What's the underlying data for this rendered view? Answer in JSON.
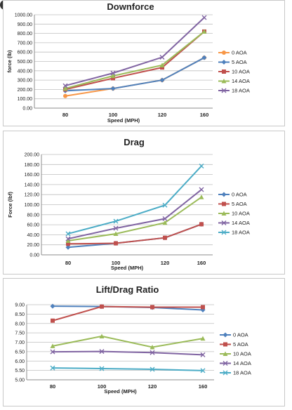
{
  "chart_data": [
    {
      "type": "line",
      "title": "Downforce",
      "xlabel": "Speed (MPH)",
      "ylabel": "force (lb)",
      "categories": [
        "80",
        "100",
        "120",
        "160"
      ],
      "ylim": [
        0,
        1000
      ],
      "ytick_step": 100,
      "ytick_decimals": 2,
      "grid": true,
      "legend": "right",
      "series": [
        {
          "name": "0 AOA",
          "color": "#f79646",
          "marker": "circle",
          "values": [
            130,
            210,
            300,
            540
          ]
        },
        {
          "name": "5 AOA",
          "color": "#4f81bd",
          "marker": "diamond",
          "values": [
            185,
            210,
            300,
            540
          ]
        },
        {
          "name": "10 AOA",
          "color": "#c0504d",
          "marker": "square",
          "values": [
            200,
            320,
            435,
            820
          ]
        },
        {
          "name": "14 AOA",
          "color": "#9bbb59",
          "marker": "triangle",
          "values": [
            210,
            345,
            460,
            820
          ]
        },
        {
          "name": "18 AOA",
          "color": "#8064a2",
          "marker": "x",
          "values": [
            240,
            375,
            545,
            970
          ]
        }
      ]
    },
    {
      "type": "line",
      "title": "Drag",
      "xlabel": "Speed (MPH)",
      "ylabel": "Force (lbf)",
      "categories": [
        "80",
        "100",
        "120",
        "160"
      ],
      "ylim": [
        0,
        200
      ],
      "ytick_step": 20,
      "ytick_decimals": 2,
      "grid": true,
      "legend": "right",
      "series": [
        {
          "name": "0 AOA",
          "color": "#4f81bd",
          "marker": "diamond",
          "values": [
            15,
            23,
            34,
            61
          ]
        },
        {
          "name": "5 AOA",
          "color": "#c0504d",
          "marker": "square",
          "values": [
            22,
            23,
            34,
            61
          ]
        },
        {
          "name": "10 AOA",
          "color": "#9bbb59",
          "marker": "triangle",
          "values": [
            28,
            42,
            64,
            115
          ]
        },
        {
          "name": "14 AOA",
          "color": "#8064a2",
          "marker": "x",
          "values": [
            32,
            53,
            72,
            130
          ]
        },
        {
          "name": "18 AOA",
          "color": "#4bacc6",
          "marker": "x",
          "values": [
            42,
            67,
            99,
            177
          ]
        }
      ]
    },
    {
      "type": "line",
      "title": "Lift/Drag Ratio",
      "xlabel": "Speed (MPH)",
      "ylabel": "",
      "categories": [
        "80",
        "100",
        "120",
        "160"
      ],
      "ylim": [
        5,
        9
      ],
      "ytick_step": 0.5,
      "ytick_decimals": 2,
      "grid": true,
      "legend": "right",
      "series": [
        {
          "name": "0 AOA",
          "color": "#4f81bd",
          "marker": "diamond",
          "values": [
            8.92,
            8.9,
            8.85,
            8.72
          ]
        },
        {
          "name": "5 AOA",
          "color": "#c0504d",
          "marker": "square",
          "values": [
            8.15,
            8.9,
            8.87,
            8.87
          ]
        },
        {
          "name": "10 AOA",
          "color": "#9bbb59",
          "marker": "triangle",
          "values": [
            6.8,
            7.32,
            6.74,
            7.2
          ]
        },
        {
          "name": "14 AOA",
          "color": "#8064a2",
          "marker": "x",
          "values": [
            6.49,
            6.51,
            6.45,
            6.33
          ]
        },
        {
          "name": "18 AOA",
          "color": "#4bacc6",
          "marker": "x",
          "values": [
            5.63,
            5.6,
            5.56,
            5.49
          ]
        }
      ]
    }
  ]
}
